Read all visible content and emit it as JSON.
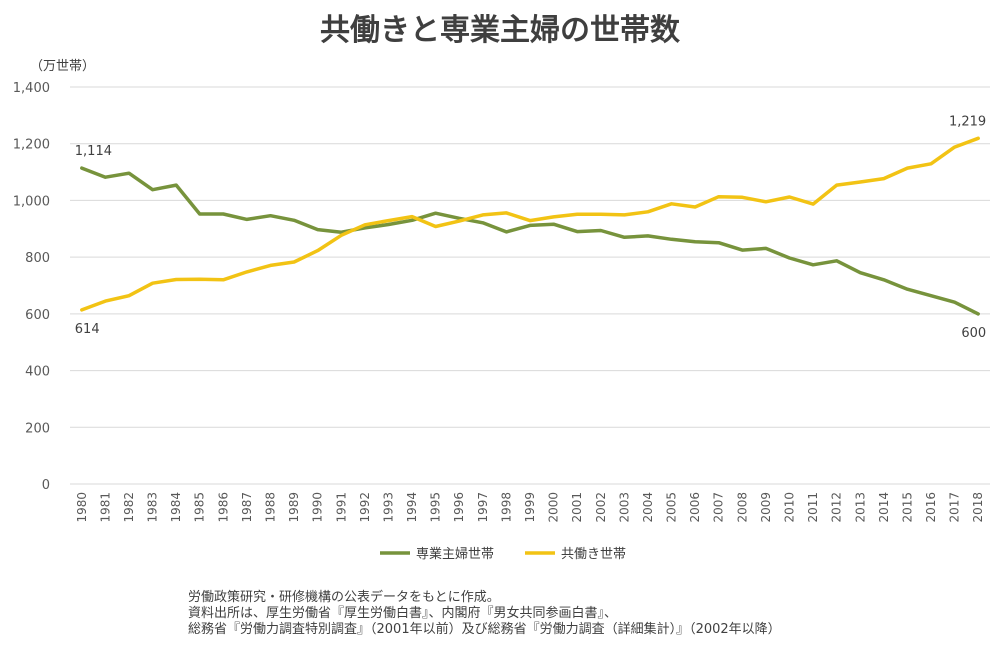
{
  "chart_data": {
    "type": "line",
    "title": "共働きと専業主婦の世帯数",
    "unit_label": "（万世帯）",
    "ylim": [
      0,
      1400
    ],
    "yticks": [
      "0",
      "200",
      "400",
      "600",
      "800",
      "1,000",
      "1,200",
      "1,400"
    ],
    "grid": "horizontal",
    "legend_position": "bottom",
    "x": [
      "1980",
      "1981",
      "1982",
      "1983",
      "1984",
      "1985",
      "1986",
      "1987",
      "1988",
      "1989",
      "1990",
      "1991",
      "1992",
      "1993",
      "1994",
      "1995",
      "1996",
      "1997",
      "1998",
      "1999",
      "2000",
      "2001",
      "2002",
      "2003",
      "2004",
      "2005",
      "2006",
      "2007",
      "2008",
      "2009",
      "2010",
      "2011",
      "2012",
      "2013",
      "2014",
      "2015",
      "2016",
      "2017",
      "2018"
    ],
    "series": [
      {
        "name": "専業主婦世帯",
        "color": "#77933c",
        "values": [
          1114,
          1082,
          1096,
          1038,
          1054,
          952,
          952,
          933,
          946,
          930,
          897,
          888,
          903,
          915,
          930,
          955,
          937,
          921,
          889,
          912,
          916,
          890,
          894,
          870,
          875,
          863,
          854,
          851,
          825,
          831,
          797,
          773,
          787,
          745,
          720,
          687,
          664,
          641,
          600
        ]
      },
      {
        "name": "共働き世帯",
        "color": "#f2c314",
        "values": [
          614,
          645,
          664,
          708,
          721,
          722,
          720,
          748,
          771,
          783,
          823,
          877,
          914,
          929,
          943,
          908,
          927,
          949,
          956,
          929,
          942,
          951,
          951,
          949,
          960,
          988,
          977,
          1013,
          1011,
          995,
          1012,
          987,
          1054,
          1065,
          1077,
          1114,
          1129,
          1188,
          1219
        ]
      }
    ],
    "annotations": [
      {
        "text": "1,114",
        "series": 0,
        "index": 0,
        "anchor": "above"
      },
      {
        "text": "614",
        "series": 1,
        "index": 0,
        "anchor": "below"
      },
      {
        "text": "1,219",
        "series": 1,
        "index": 38,
        "anchor": "above"
      },
      {
        "text": "600",
        "series": 0,
        "index": 38,
        "anchor": "below"
      }
    ]
  },
  "footer": {
    "line1": "労働政策研究・研修機構の公表データをもとに作成。",
    "line2": "資料出所は、厚生労働省『厚生労働白書』、内閣府『男女共同参画白書』、",
    "line3": "総務省『労働力調査特別調査』（2001年以前）及び総務省『労働力調査（詳細集計）』（2002年以降）"
  }
}
